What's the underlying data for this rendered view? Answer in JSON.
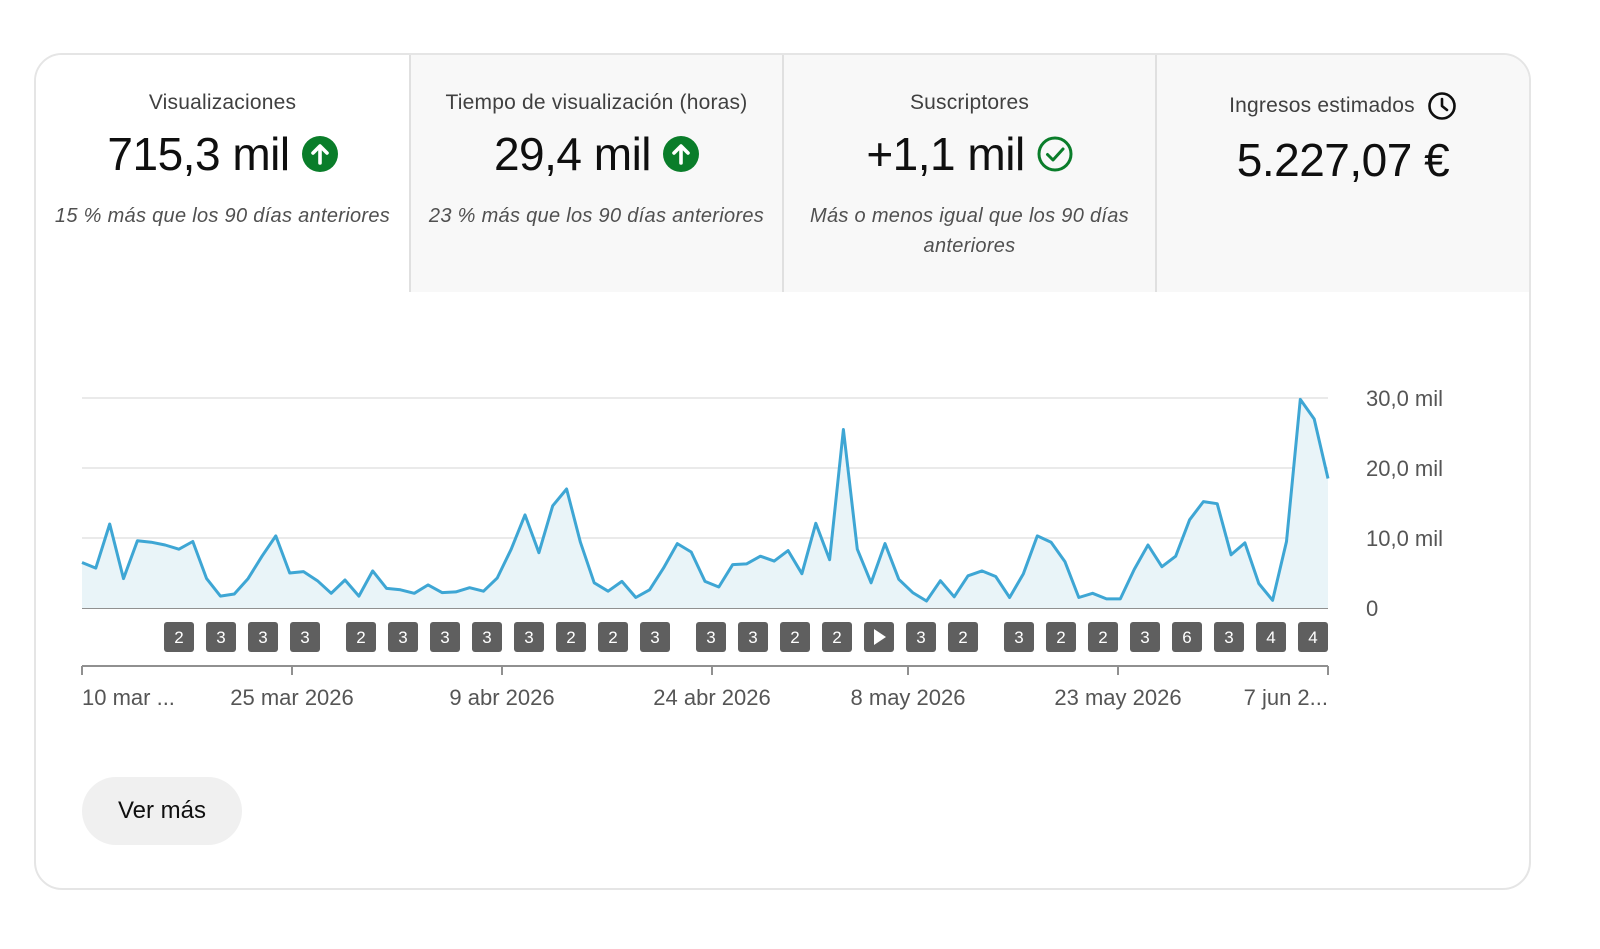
{
  "metrics": [
    {
      "label": "Visualizaciones",
      "value": "715,3 mil",
      "icon": "arrow-up-circle-icon",
      "note": "15 % más que los 90 días anteriores"
    },
    {
      "label": "Tiempo de visualización (horas)",
      "value": "29,4 mil",
      "icon": "arrow-up-circle-icon",
      "note": "23 % más que los 90 días anteriores"
    },
    {
      "label": "Suscriptores",
      "value": "+1,1 mil",
      "icon": "check-circle-icon",
      "note": "Más o menos igual que los 90 días anteriores"
    },
    {
      "label": "Ingresos estimados",
      "value": "5.227,07 €",
      "icon": "clock-icon",
      "note": ""
    }
  ],
  "colors": {
    "accent": "#3ea6d4",
    "fill": "#e9f4f8",
    "positive": "#0a7d2a",
    "marker": "#5f5f5f"
  },
  "chart_data": {
    "type": "area",
    "series": [
      {
        "values": [
          6500,
          5700,
          12000,
          4200,
          9600,
          9400,
          9000,
          8400,
          9500,
          4200,
          1700,
          2000,
          4200,
          7400,
          10300,
          5000,
          5200,
          3900,
          2100,
          4000,
          1700,
          5300,
          2800,
          2600,
          2100,
          3300,
          2200,
          2300,
          2900,
          2400,
          4300,
          8400,
          13300,
          7900,
          14600,
          17000,
          9400,
          3600,
          2400,
          3800,
          1500,
          2600,
          5700,
          9200,
          8000,
          3800,
          3000,
          6200,
          6300,
          7400,
          6700,
          8200,
          4900,
          12100,
          6900,
          25500,
          8400,
          3600,
          9200,
          4100,
          2200,
          1000,
          3900,
          1600,
          4600,
          5300,
          4500,
          1500,
          4900,
          10300,
          9400,
          6600,
          1500,
          2100,
          1300,
          1300,
          5500,
          9000,
          5900,
          7400,
          12600,
          15200,
          14900,
          7600,
          9300,
          3500,
          1100,
          9500,
          29800,
          27000,
          18500
        ]
      }
    ],
    "x_ticks": [
      "10 mar ...",
      "25 mar 2026",
      "9 abr 2026",
      "24 abr 2026",
      "8 may 2026",
      "23 may 2026",
      "7 jun 2..."
    ],
    "y_ticks": [
      "30,0 mil",
      "20,0 mil",
      "10,0 mil",
      "0"
    ],
    "ylim": [
      0,
      30000
    ],
    "markers": [
      "2",
      "3",
      "3",
      "3",
      "2",
      "3",
      "3",
      "3",
      "3",
      "2",
      "2",
      "3",
      "3",
      "3",
      "2",
      "2",
      "play",
      "3",
      "2",
      "3",
      "2",
      "2",
      "3",
      "6",
      "3",
      "4",
      "4"
    ]
  },
  "ver_mas_label": "Ver más"
}
